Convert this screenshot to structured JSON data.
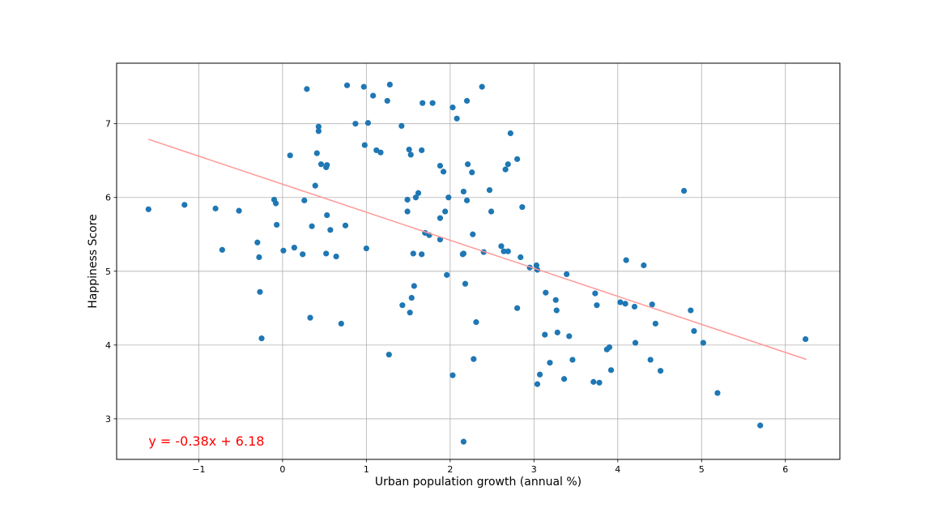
{
  "chart_data": {
    "type": "scatter",
    "xlabel": "Urban population growth (annual %)",
    "ylabel": "Happiness Score",
    "xlim": [
      -1.98,
      6.65
    ],
    "ylim": [
      2.45,
      7.82
    ],
    "xticks": [
      -1,
      0,
      1,
      2,
      3,
      4,
      5,
      6
    ],
    "yticks": [
      3,
      4,
      5,
      6,
      7
    ],
    "xtick_labels": [
      "−1",
      "0",
      "1",
      "2",
      "3",
      "4",
      "5",
      "6"
    ],
    "ytick_labels": [
      "3",
      "4",
      "5",
      "6",
      "7"
    ],
    "grid": true,
    "point_color": "#1f77b4",
    "fit": {
      "slope": -0.38,
      "intercept": 6.18,
      "x_range": [
        -1.6,
        6.25
      ],
      "color": "#ff9896",
      "label": "y = -0.38x + 6.18",
      "label_color": "#ff0000",
      "label_anchor": [
        -1.6,
        2.7
      ]
    },
    "points": [
      [
        -1.6,
        5.84
      ],
      [
        -1.17,
        5.9
      ],
      [
        -0.8,
        5.85
      ],
      [
        -0.72,
        5.29
      ],
      [
        -0.52,
        5.82
      ],
      [
        -0.1,
        5.97
      ],
      [
        -0.08,
        5.92
      ],
      [
        -0.07,
        5.63
      ],
      [
        -0.3,
        5.39
      ],
      [
        -0.28,
        5.19
      ],
      [
        -0.27,
        4.72
      ],
      [
        -0.25,
        4.09
      ],
      [
        0.01,
        5.28
      ],
      [
        0.09,
        6.57
      ],
      [
        0.14,
        5.32
      ],
      [
        0.24,
        5.23
      ],
      [
        0.26,
        5.96
      ],
      [
        0.29,
        7.47
      ],
      [
        0.33,
        4.37
      ],
      [
        0.35,
        5.61
      ],
      [
        0.39,
        6.16
      ],
      [
        0.41,
        6.6
      ],
      [
        0.43,
        6.96
      ],
      [
        0.43,
        6.9
      ],
      [
        0.46,
        6.45
      ],
      [
        0.52,
        6.41
      ],
      [
        0.53,
        6.44
      ],
      [
        0.52,
        5.24
      ],
      [
        0.53,
        5.76
      ],
      [
        0.57,
        5.56
      ],
      [
        0.64,
        5.2
      ],
      [
        0.7,
        4.29
      ],
      [
        0.75,
        5.62
      ],
      [
        0.77,
        7.52
      ],
      [
        0.87,
        7.0
      ],
      [
        0.97,
        7.5
      ],
      [
        0.98,
        6.71
      ],
      [
        1.0,
        5.31
      ],
      [
        1.02,
        7.01
      ],
      [
        1.08,
        7.38
      ],
      [
        1.12,
        6.64
      ],
      [
        1.17,
        6.61
      ],
      [
        1.25,
        7.31
      ],
      [
        1.28,
        7.53
      ],
      [
        1.27,
        3.87
      ],
      [
        1.42,
        6.97
      ],
      [
        1.43,
        4.54
      ],
      [
        1.49,
        5.97
      ],
      [
        1.49,
        5.81
      ],
      [
        1.51,
        6.65
      ],
      [
        1.53,
        6.58
      ],
      [
        1.52,
        4.44
      ],
      [
        1.54,
        4.64
      ],
      [
        1.56,
        5.24
      ],
      [
        1.57,
        4.8
      ],
      [
        1.59,
        6.0
      ],
      [
        1.62,
        6.06
      ],
      [
        1.66,
        6.64
      ],
      [
        1.67,
        7.28
      ],
      [
        1.66,
        5.23
      ],
      [
        1.7,
        5.52
      ],
      [
        1.75,
        5.49
      ],
      [
        1.79,
        7.28
      ],
      [
        1.88,
        6.43
      ],
      [
        1.88,
        5.72
      ],
      [
        1.88,
        5.43
      ],
      [
        1.92,
        6.35
      ],
      [
        1.94,
        5.81
      ],
      [
        1.96,
        4.95
      ],
      [
        1.98,
        6.0
      ],
      [
        2.03,
        7.22
      ],
      [
        2.03,
        3.59
      ],
      [
        2.08,
        7.07
      ],
      [
        2.15,
        5.23
      ],
      [
        2.16,
        5.24
      ],
      [
        2.16,
        6.08
      ],
      [
        2.16,
        2.69
      ],
      [
        2.18,
        4.83
      ],
      [
        2.2,
        7.31
      ],
      [
        2.2,
        5.96
      ],
      [
        2.21,
        6.45
      ],
      [
        2.26,
        6.34
      ],
      [
        2.27,
        5.5
      ],
      [
        2.28,
        3.81
      ],
      [
        2.31,
        4.31
      ],
      [
        2.38,
        7.5
      ],
      [
        2.4,
        5.26
      ],
      [
        2.47,
        6.1
      ],
      [
        2.49,
        5.81
      ],
      [
        2.61,
        5.34
      ],
      [
        2.64,
        5.27
      ],
      [
        2.66,
        6.38
      ],
      [
        2.69,
        6.45
      ],
      [
        2.69,
        5.27
      ],
      [
        2.72,
        6.87
      ],
      [
        2.8,
        6.52
      ],
      [
        2.8,
        4.5
      ],
      [
        2.84,
        5.19
      ],
      [
        2.86,
        5.87
      ],
      [
        2.95,
        5.05
      ],
      [
        3.03,
        5.08
      ],
      [
        3.04,
        5.02
      ],
      [
        3.04,
        3.47
      ],
      [
        3.07,
        3.6
      ],
      [
        3.13,
        4.14
      ],
      [
        3.14,
        4.71
      ],
      [
        3.19,
        3.76
      ],
      [
        3.26,
        4.61
      ],
      [
        3.27,
        4.47
      ],
      [
        3.28,
        4.17
      ],
      [
        3.36,
        3.54
      ],
      [
        3.39,
        4.96
      ],
      [
        3.42,
        4.12
      ],
      [
        3.46,
        3.8
      ],
      [
        3.71,
        3.5
      ],
      [
        3.73,
        4.7
      ],
      [
        3.75,
        4.54
      ],
      [
        3.78,
        3.49
      ],
      [
        3.87,
        3.94
      ],
      [
        3.9,
        3.97
      ],
      [
        3.92,
        3.66
      ],
      [
        4.03,
        4.58
      ],
      [
        4.09,
        4.56
      ],
      [
        4.1,
        5.15
      ],
      [
        4.2,
        4.52
      ],
      [
        4.21,
        4.03
      ],
      [
        4.31,
        5.08
      ],
      [
        4.39,
        3.8
      ],
      [
        4.41,
        4.55
      ],
      [
        4.45,
        4.29
      ],
      [
        4.51,
        3.65
      ],
      [
        4.79,
        6.09
      ],
      [
        4.87,
        4.47
      ],
      [
        4.91,
        4.19
      ],
      [
        5.02,
        4.03
      ],
      [
        5.19,
        3.35
      ],
      [
        5.7,
        2.91
      ],
      [
        6.24,
        4.08
      ]
    ]
  }
}
